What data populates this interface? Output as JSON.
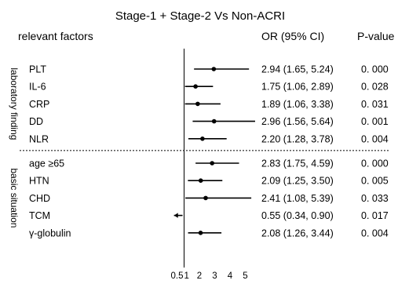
{
  "chart_data": {
    "type": "forest",
    "title": "Stage-1 + Stage-2 Vs Non-ACRI",
    "headers": {
      "factors": "relevant factors",
      "or_ci": "OR (95% CI)",
      "pvalue": "P-value"
    },
    "reference_line": 1,
    "x_ticks": [
      {
        "value": 0.5,
        "label": "0.5"
      },
      {
        "value": 1,
        "label": "1"
      },
      {
        "value": 2,
        "label": "2"
      },
      {
        "value": 3,
        "label": "3"
      },
      {
        "value": 4,
        "label": "4"
      },
      {
        "value": 5,
        "label": "5"
      }
    ],
    "groups": [
      {
        "name": "laboratory finding",
        "rows": [
          {
            "label": "PLT",
            "or": 2.94,
            "lower": 1.65,
            "upper": 5.24,
            "or_text": "2.94 (1.65, 5.24)",
            "p": "0. 000"
          },
          {
            "label": "IL-6",
            "or": 1.75,
            "lower": 1.06,
            "upper": 2.89,
            "or_text": "1.75 (1.06, 2.89)",
            "p": "0. 028"
          },
          {
            "label": "CRP",
            "or": 1.89,
            "lower": 1.06,
            "upper": 3.38,
            "or_text": "1.89 (1.06, 3.38)",
            "p": "0. 031"
          },
          {
            "label": "DD",
            "or": 2.96,
            "lower": 1.56,
            "upper": 5.64,
            "or_text": "2.96 (1.56, 5.64)",
            "p": "0. 001"
          },
          {
            "label": "NLR",
            "or": 2.2,
            "lower": 1.28,
            "upper": 3.78,
            "or_text": "2.20 (1.28, 3.78)",
            "p": "0. 004"
          }
        ]
      },
      {
        "name": "basic situation",
        "rows": [
          {
            "label": "age ≥65",
            "or": 2.83,
            "lower": 1.75,
            "upper": 4.59,
            "or_text": "2.83 (1.75, 4.59)",
            "p": "0. 000"
          },
          {
            "label": "HTN",
            "or": 2.09,
            "lower": 1.25,
            "upper": 3.5,
            "or_text": "2.09 (1.25, 3.50)",
            "p": "0. 005"
          },
          {
            "label": "CHD",
            "or": 2.41,
            "lower": 1.08,
            "upper": 5.39,
            "or_text": "2.41 (1.08, 5.39)",
            "p": "0. 033"
          },
          {
            "label": "TCM",
            "or": 0.55,
            "lower": 0.34,
            "upper": 0.9,
            "or_text": "0.55 (0.34, 0.90)",
            "p": "0. 017"
          },
          {
            "label": "γ-globulin",
            "or": 2.08,
            "lower": 1.26,
            "upper": 3.44,
            "or_text": "2.08 (1.26, 3.44)",
            "p": "0. 004"
          }
        ]
      }
    ]
  }
}
